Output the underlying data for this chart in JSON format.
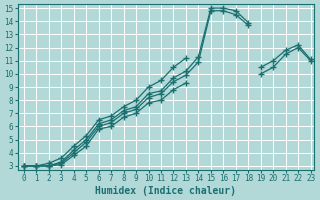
{
  "bg_color": "#b2d8d8",
  "grid_color": "#ffffff",
  "line_color": "#1a7070",
  "xlabel": "Humidex (Indice chaleur)",
  "xlim": [
    -0.5,
    23.3
  ],
  "ylim": [
    2.7,
    15.3
  ],
  "xticks": [
    0,
    1,
    2,
    3,
    4,
    5,
    6,
    7,
    8,
    9,
    10,
    11,
    12,
    13,
    14,
    15,
    16,
    17,
    18,
    19,
    20,
    21,
    22,
    23
  ],
  "yticks": [
    3,
    4,
    5,
    6,
    7,
    8,
    9,
    10,
    11,
    12,
    13,
    14,
    15
  ],
  "lines": [
    [
      3.0,
      3.0,
      3.0,
      3.3,
      4.2,
      5.0,
      6.2,
      6.5,
      7.2,
      7.5,
      8.5,
      8.7,
      9.7,
      10.2,
      11.3,
      15.0,
      15.0,
      14.8,
      13.9,
      null,
      null,
      null,
      null,
      null
    ],
    [
      3.0,
      3.0,
      3.0,
      3.2,
      4.0,
      4.8,
      6.0,
      6.3,
      7.0,
      7.3,
      8.2,
      8.5,
      9.4,
      9.9,
      10.9,
      14.8,
      14.8,
      14.5,
      13.7,
      null,
      null,
      null,
      null,
      null
    ],
    [
      3.0,
      3.0,
      3.2,
      3.6,
      4.5,
      5.3,
      6.5,
      6.8,
      7.5,
      8.0,
      9.0,
      9.5,
      10.5,
      11.2,
      null,
      null,
      null,
      null,
      null,
      10.5,
      11.0,
      11.8,
      12.2,
      11.1
    ],
    [
      3.0,
      3.0,
      3.0,
      3.1,
      3.8,
      4.5,
      5.8,
      6.0,
      6.7,
      7.0,
      7.8,
      8.0,
      8.8,
      9.3,
      null,
      null,
      null,
      null,
      null,
      10.0,
      10.5,
      11.5,
      12.0,
      11.0
    ]
  ]
}
